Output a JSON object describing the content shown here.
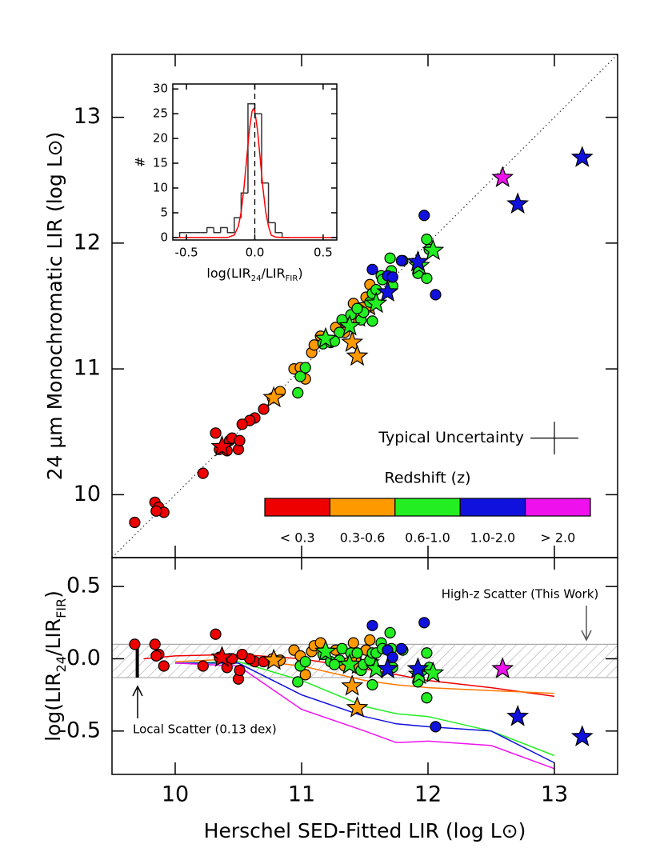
{
  "chart_data": [
    {
      "type": "scatter",
      "ylabel": "24 μm Monochromatic LIR (log L⊙)",
      "xlim": [
        9.5,
        13.5
      ],
      "ylim": [
        9.5,
        13.5
      ],
      "xticks": [
        10,
        11,
        12,
        13
      ],
      "yticks": [
        10,
        11,
        12,
        13
      ],
      "one_to_one": true,
      "series": [
        {
          "color": "#ee0000",
          "marker": "circle",
          "x": [
            9.68,
            9.84,
            9.87,
            9.91,
            9.85,
            10.22,
            10.32,
            10.43,
            10.45,
            10.35,
            10.41,
            10.5,
            10.51,
            10.63,
            10.59,
            10.7,
            10.53
          ],
          "values": [
            9.78,
            9.94,
            9.9,
            9.86,
            9.87,
            10.17,
            10.49,
            10.43,
            10.45,
            10.36,
            10.35,
            10.36,
            10.43,
            10.61,
            10.59,
            10.68,
            10.56
          ]
        },
        {
          "color": "#ee0000",
          "marker": "star",
          "x": [
            10.37
          ],
          "values": [
            10.38
          ]
        },
        {
          "color": "#ff9900",
          "marker": "circle",
          "x": [
            10.77,
            10.83,
            10.94,
            10.99,
            11.03,
            11.08,
            11.1,
            11.15,
            11.27,
            11.36,
            11.41,
            11.43,
            11.51,
            11.54,
            11.34
          ],
          "values": [
            10.77,
            10.82,
            11.0,
            11.01,
            10.92,
            11.13,
            11.19,
            11.26,
            11.33,
            11.33,
            11.52,
            11.43,
            11.57,
            11.67,
            11.29
          ]
        },
        {
          "color": "#ff9900",
          "marker": "star",
          "x": [
            10.78,
            11.4,
            11.44,
            11.53,
            11.45
          ],
          "values": [
            10.77,
            11.21,
            11.1,
            11.5,
            11.41
          ]
        },
        {
          "color": "#22ee22",
          "marker": "circle",
          "x": [
            10.97,
            10.99,
            11.03,
            11.17,
            11.23,
            11.3,
            11.32,
            11.39,
            11.47,
            11.49,
            11.54,
            11.56,
            11.59,
            11.63,
            11.7,
            11.71,
            11.56,
            11.64,
            11.99,
            12.01,
            11.92,
            11.99,
            11.72,
            11.8,
            11.26,
            11.44
          ],
          "values": [
            10.81,
            10.94,
            11.01,
            11.2,
            11.21,
            11.29,
            11.39,
            11.43,
            11.39,
            11.45,
            11.53,
            11.6,
            11.63,
            11.74,
            11.88,
            11.78,
            11.38,
            11.71,
            12.03,
            11.95,
            11.76,
            11.72,
            11.66,
            11.86,
            11.22,
            11.48
          ]
        },
        {
          "color": "#22ee22",
          "marker": "star",
          "x": [
            11.19,
            11.38,
            11.93,
            12.04,
            11.59
          ],
          "values": [
            11.24,
            11.34,
            11.82,
            11.94,
            11.52
          ]
        },
        {
          "color": "#1111dd",
          "marker": "circle",
          "x": [
            11.56,
            11.79,
            11.68,
            11.97,
            12.06,
            11.72
          ],
          "values": [
            11.79,
            11.86,
            11.74,
            12.22,
            11.59,
            11.73
          ]
        },
        {
          "color": "#1111dd",
          "marker": "star",
          "x": [
            11.68,
            11.92,
            12.71,
            13.22
          ],
          "values": [
            11.61,
            11.85,
            12.31,
            12.68
          ]
        },
        {
          "color": "#ee11ee",
          "marker": "star",
          "x": [
            12.59
          ],
          "values": [
            12.52
          ]
        }
      ],
      "uncertainty": {
        "label": "Typical Uncertainty",
        "x": 13.0,
        "y": 10.45,
        "xerr": 0.19,
        "yerr": 0.13
      },
      "colorbar": {
        "title": "Redshift (z)",
        "labels": [
          "< 0.3",
          "0.3-0.6",
          "0.6-1.0",
          "1.0-2.0",
          "> 2.0"
        ],
        "colors": [
          "#ee0000",
          "#ff9900",
          "#22ee22",
          "#1111dd",
          "#ee11ee"
        ]
      }
    },
    {
      "type": "histogram",
      "ylabel": "#",
      "xlabel_parts": [
        "log(LIR",
        "24",
        "/LIR",
        "FIR",
        ")"
      ],
      "xlim": [
        -0.6,
        0.6
      ],
      "ylim": [
        -0.5,
        31
      ],
      "xticks": [
        -0.5,
        {
          "value": 0,
          "label": "0.0"
        },
        0.5
      ],
      "yticks": [
        0,
        5,
        10,
        15,
        20,
        25,
        30
      ],
      "bins": [
        -0.55,
        -0.5,
        -0.45,
        -0.4,
        -0.35,
        -0.3,
        -0.25,
        -0.2,
        -0.15,
        -0.1,
        -0.05,
        0,
        0.05,
        0.1,
        0.15,
        0.2,
        0.25
      ],
      "counts": [
        1,
        1,
        1,
        1,
        2,
        1,
        2,
        1,
        4,
        9,
        27,
        25,
        11,
        3,
        1,
        0
      ],
      "color": "#333333",
      "fit": {
        "color": "#ff0000",
        "x": [
          -0.6,
          -0.2,
          -0.15,
          -0.12,
          -0.1,
          -0.08,
          -0.06,
          -0.04,
          -0.02,
          -0.01,
          0,
          0.02,
          0.04,
          0.06,
          0.08,
          0.1,
          0.12,
          0.15,
          0.2,
          0.6
        ],
        "values": [
          0,
          0,
          0.5,
          2.3,
          5.1,
          9.8,
          15.8,
          21.7,
          25.5,
          26,
          25.5,
          21.7,
          15.8,
          9.8,
          5.1,
          2.3,
          0.5,
          0.1,
          0,
          0
        ]
      },
      "vline": 0
    },
    {
      "type": "scatter",
      "ylabel_parts": [
        "log(LIR",
        "24",
        "/LIR",
        "FIR",
        ")"
      ],
      "xlabel": "Herschel SED-Fitted LIR (log L⊙)",
      "xlim": [
        9.5,
        13.5
      ],
      "ylim": [
        -0.8,
        0.7
      ],
      "xticks": [
        10,
        11,
        12,
        13
      ],
      "yticks": [
        0.5,
        {
          "value": 0,
          "label": "0.0"
        },
        -0.5
      ],
      "band": [
        -0.13,
        0.1
      ],
      "scatter_bar": {
        "x": 9.7,
        "values": [
          0.1,
          -0.13
        ]
      },
      "lines": {
        "x": [
          9.75,
          10.0,
          10.5,
          11.0,
          11.5,
          11.75,
          12.0,
          12.5,
          13.0
        ],
        "series": [
          {
            "color": "#ee0000",
            "values": [
              0.0,
              0.02,
              0.03,
              0.0,
              -0.07,
              -0.11,
              -0.15,
              -0.2,
              -0.26
            ]
          },
          {
            "color": "#ff7700",
            "values": [
              null,
              -0.02,
              0.0,
              -0.05,
              -0.15,
              -0.18,
              -0.2,
              -0.22,
              -0.24
            ]
          },
          {
            "color": "#22ee22",
            "values": [
              null,
              -0.03,
              -0.02,
              -0.15,
              -0.33,
              -0.38,
              -0.4,
              -0.5,
              -0.67
            ]
          },
          {
            "color": "#1111dd",
            "values": [
              null,
              -0.03,
              -0.03,
              -0.25,
              -0.4,
              -0.45,
              -0.47,
              -0.5,
              -0.72
            ]
          },
          {
            "color": "#ee11ee",
            "values": [
              null,
              -0.03,
              -0.05,
              -0.35,
              -0.5,
              -0.58,
              -0.57,
              -0.6,
              -0.76
            ]
          }
        ]
      },
      "series": [
        {
          "color": "#ee0000",
          "marker": "circle",
          "x": [
            9.68,
            9.84,
            9.87,
            9.91,
            9.85,
            10.22,
            10.32,
            10.43,
            10.45,
            10.35,
            10.41,
            10.5,
            10.51,
            10.63,
            10.59,
            10.7,
            10.53
          ],
          "values": [
            0.1,
            0.1,
            0.03,
            -0.05,
            0.02,
            -0.05,
            0.17,
            0.0,
            0.0,
            0.01,
            -0.06,
            -0.14,
            -0.08,
            -0.02,
            0.0,
            -0.02,
            0.03
          ]
        },
        {
          "color": "#ee0000",
          "marker": "star",
          "x": [
            10.37
          ],
          "values": [
            0.01
          ]
        },
        {
          "color": "#ff9900",
          "marker": "circle",
          "x": [
            10.77,
            10.83,
            10.94,
            10.99,
            11.03,
            11.08,
            11.1,
            11.15,
            11.27,
            11.36,
            11.41,
            11.43,
            11.51,
            11.54,
            11.34
          ],
          "values": [
            0.0,
            -0.01,
            0.06,
            0.02,
            -0.11,
            0.05,
            0.09,
            0.11,
            0.06,
            -0.03,
            0.11,
            0.0,
            0.06,
            0.13,
            -0.05
          ]
        },
        {
          "color": "#ff9900",
          "marker": "star",
          "x": [
            10.78,
            11.4,
            11.44,
            11.53,
            11.45
          ],
          "values": [
            -0.01,
            -0.19,
            -0.34,
            -0.03,
            -0.04
          ]
        },
        {
          "color": "#22ee22",
          "marker": "circle",
          "x": [
            10.97,
            10.99,
            11.03,
            11.17,
            11.23,
            11.3,
            11.32,
            11.39,
            11.47,
            11.49,
            11.54,
            11.56,
            11.59,
            11.63,
            11.7,
            11.71,
            11.56,
            11.64,
            11.99,
            12.01,
            11.92,
            11.99,
            11.72,
            11.8,
            11.26,
            11.44
          ],
          "values": [
            -0.16,
            -0.05,
            -0.02,
            0.03,
            -0.02,
            -0.01,
            0.07,
            0.04,
            -0.08,
            -0.04,
            -0.01,
            0.04,
            0.04,
            0.11,
            0.18,
            0.07,
            -0.18,
            0.07,
            0.04,
            -0.06,
            -0.16,
            -0.27,
            -0.06,
            0.06,
            -0.04,
            0.04
          ]
        },
        {
          "color": "#22ee22",
          "marker": "star",
          "x": [
            11.19,
            11.38,
            11.93,
            12.04,
            11.59
          ],
          "values": [
            0.05,
            -0.04,
            -0.11,
            -0.1,
            -0.07
          ]
        },
        {
          "color": "#1111dd",
          "marker": "circle",
          "x": [
            11.56,
            11.79,
            11.68,
            11.97,
            12.06,
            11.72
          ],
          "values": [
            0.23,
            0.07,
            0.06,
            0.25,
            -0.47,
            0.01
          ]
        },
        {
          "color": "#1111dd",
          "marker": "star",
          "x": [
            11.68,
            11.92,
            12.71,
            13.22
          ],
          "values": [
            -0.07,
            -0.07,
            -0.4,
            -0.54
          ]
        },
        {
          "color": "#ee11ee",
          "marker": "star",
          "x": [
            12.59
          ],
          "values": [
            -0.07
          ]
        }
      ],
      "annotations": [
        "High-z Scatter (This Work)",
        "Local Scatter (0.13 dex)"
      ]
    }
  ]
}
